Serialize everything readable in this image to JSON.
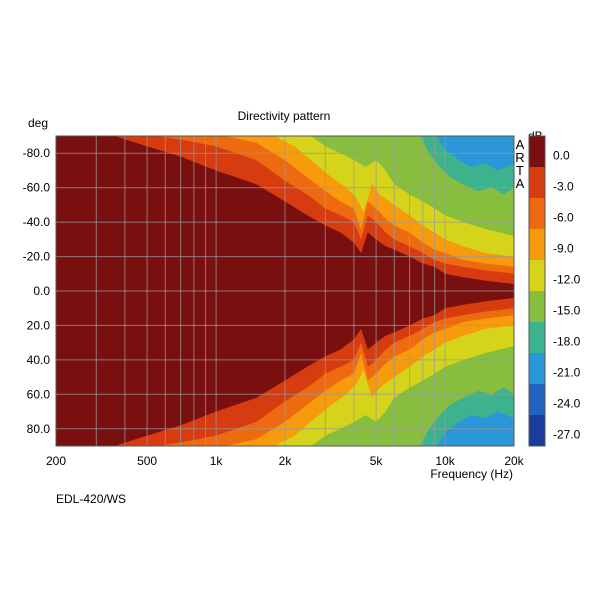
{
  "chart_data": {
    "type": "heatmap",
    "title": "Directivity pattern",
    "ylabel": "deg",
    "xlabel": "Frequency (Hz)",
    "x_scale": "log",
    "xlim": [
      200,
      20000
    ],
    "ylim": [
      -90,
      90
    ],
    "y_reversed": true,
    "x_tick_labels": [
      {
        "value": 200,
        "label": "200"
      },
      {
        "value": 500,
        "label": "500"
      },
      {
        "value": 1000,
        "label": "1k"
      },
      {
        "value": 2000,
        "label": "2k"
      },
      {
        "value": 5000,
        "label": "5k"
      },
      {
        "value": 10000,
        "label": "10k"
      },
      {
        "value": 20000,
        "label": "20k"
      }
    ],
    "x_grid_values": [
      300,
      400,
      500,
      600,
      700,
      800,
      900,
      1000,
      2000,
      3000,
      4000,
      5000,
      6000,
      7000,
      8000,
      9000,
      10000
    ],
    "y_tick_labels": [
      {
        "value": -80,
        "label": "-80.0"
      },
      {
        "value": -60,
        "label": "-60.0"
      },
      {
        "value": -40,
        "label": "-40.0"
      },
      {
        "value": -20,
        "label": "-20.0"
      },
      {
        "value": 0,
        "label": "0.0"
      },
      {
        "value": 20,
        "label": "20.0"
      },
      {
        "value": 40,
        "label": "40.0"
      },
      {
        "value": 60,
        "label": "60.0"
      },
      {
        "value": 80,
        "label": "80.0"
      }
    ],
    "grid": true,
    "colorbar": {
      "title": "dB",
      "labels": [
        "0.0",
        "-3.0",
        "-6.0",
        "-9.0",
        "-12.0",
        "-15.0",
        "-18.0",
        "-21.0",
        "-24.0",
        "-27.0"
      ],
      "colors": [
        "#7a0f0f",
        "#d73b10",
        "#ee6a10",
        "#f79a0c",
        "#d6d41a",
        "#88be3e",
        "#3cb28e",
        "#2a98d8",
        "#1f62c0",
        "#1a3c9c"
      ]
    },
    "level_colors": [
      "#7a0f0f",
      "#d73b10",
      "#ee6a10",
      "#f79a0c",
      "#d6d41a",
      "#88be3e",
      "#3cb28e",
      "#2a98d8"
    ],
    "contour_angles": [
      {
        "level": "-3 dB",
        "freq": [
          200,
          360,
          500,
          700,
          1000,
          1500,
          2000,
          2500,
          3000,
          3500,
          4000,
          4300,
          4600,
          5000,
          5500,
          6000,
          7000,
          8000,
          9000,
          10000,
          12000,
          15000,
          20000
        ],
        "deg": [
          90,
          90,
          84,
          78,
          70,
          62,
          52,
          44,
          38,
          34,
          28,
          22,
          34,
          30,
          26,
          24,
          20,
          16,
          14,
          10,
          8,
          6,
          4
        ]
      },
      {
        "level": "-6 dB",
        "freq": [
          200,
          550,
          700,
          1000,
          1500,
          2000,
          2500,
          3000,
          3500,
          4000,
          4300,
          4600,
          5000,
          5500,
          6000,
          7000,
          8000,
          9000,
          10000,
          12000,
          15000,
          20000
        ],
        "deg": [
          90,
          90,
          88,
          84,
          76,
          64,
          56,
          48,
          44,
          40,
          30,
          44,
          40,
          34,
          30,
          26,
          22,
          18,
          16,
          14,
          12,
          10
        ]
      },
      {
        "level": "-9 dB",
        "freq": [
          200,
          1100,
          1500,
          2000,
          2500,
          3000,
          3500,
          4000,
          4300,
          4600,
          5000,
          5500,
          6000,
          7000,
          8000,
          9000,
          10000,
          12000,
          15000,
          20000
        ],
        "deg": [
          90,
          90,
          86,
          76,
          66,
          58,
          52,
          48,
          36,
          52,
          48,
          42,
          38,
          34,
          28,
          24,
          22,
          18,
          16,
          14
        ]
      },
      {
        "level": "-12 dB",
        "freq": [
          200,
          1800,
          2200,
          2700,
          3200,
          3700,
          4100,
          4400,
          4800,
          5200,
          6000,
          7000,
          8000,
          9000,
          10000,
          12000,
          15000,
          20000
        ],
        "deg": [
          90,
          90,
          84,
          74,
          66,
          60,
          54,
          46,
          62,
          56,
          50,
          44,
          38,
          34,
          30,
          26,
          22,
          20
        ]
      },
      {
        "level": "-15 dB",
        "freq": [
          200,
          2600,
          3000,
          3500,
          4000,
          4500,
          5000,
          5500,
          6000,
          7000,
          8000,
          9000,
          10000,
          12000,
          15000,
          20000
        ],
        "deg": [
          90,
          90,
          84,
          80,
          76,
          72,
          76,
          70,
          62,
          56,
          52,
          48,
          44,
          40,
          36,
          32
        ]
      },
      {
        "level": "-18 dB",
        "freq": [
          200,
          7800,
          8500,
          9500,
          10500,
          12000,
          14000,
          16000,
          18000,
          20000
        ],
        "deg": [
          90,
          90,
          80,
          72,
          66,
          62,
          58,
          60,
          56,
          60
        ]
      },
      {
        "level": "-21 dB",
        "freq": [
          200,
          9200,
          10000,
          11500,
          13000,
          15000,
          17000,
          20000
        ],
        "deg": [
          90,
          90,
          82,
          76,
          72,
          74,
          70,
          74
        ]
      }
    ],
    "vendor_mark": "ARTA",
    "caption": "EDL-420/WS"
  }
}
